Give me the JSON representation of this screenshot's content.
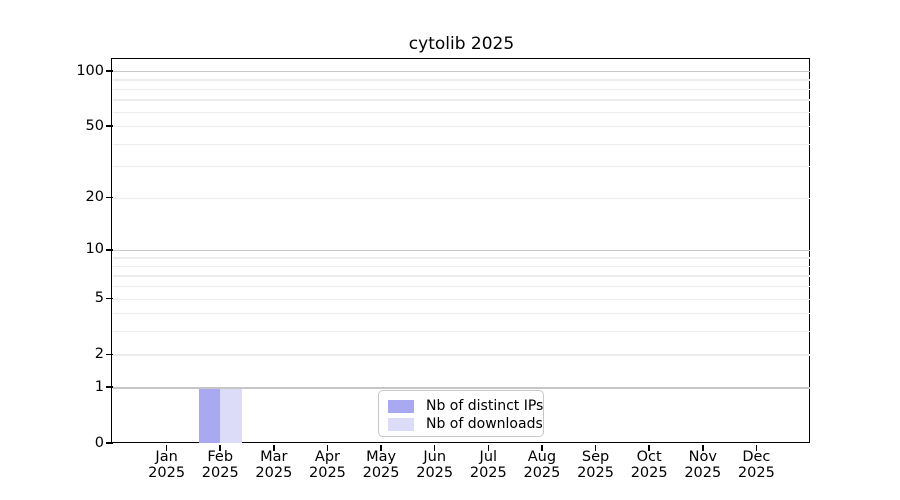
{
  "chart_data": {
    "type": "bar",
    "title": "cytolib 2025",
    "x_categories": [
      "Jan",
      "Feb",
      "Mar",
      "Apr",
      "May",
      "Jun",
      "Jul",
      "Aug",
      "Sep",
      "Oct",
      "Nov",
      "Dec"
    ],
    "x_sublabel": "2025",
    "series": [
      {
        "name": "Nb of distinct IPs",
        "color": "#a9a9f2",
        "values": [
          0,
          1,
          0,
          0,
          0,
          0,
          0,
          0,
          0,
          0,
          0,
          0
        ]
      },
      {
        "name": "Nb of downloads",
        "color": "#dcdcf8",
        "values": [
          0,
          1,
          0,
          0,
          0,
          0,
          0,
          0,
          0,
          0,
          0,
          0
        ]
      }
    ],
    "y_axis": {
      "scale": "log10(1+x)",
      "lim": [
        0,
        100
      ],
      "tick_values": [
        0,
        1,
        2,
        5,
        10,
        20,
        50,
        100
      ],
      "minor_grid_values": [
        3,
        4,
        6,
        7,
        8,
        9,
        30,
        40,
        60,
        70,
        80,
        90
      ],
      "decade_grid_values": [
        1,
        10,
        100
      ]
    },
    "legend": {
      "position": "lower center"
    },
    "grid": true
  },
  "colors": {
    "background": "#ffffff",
    "spine": "#000000",
    "grid_decade": "#c6c6c6",
    "grid_minor": "#ececec",
    "legend_border": "#c8c8c8",
    "text": "#000000"
  }
}
